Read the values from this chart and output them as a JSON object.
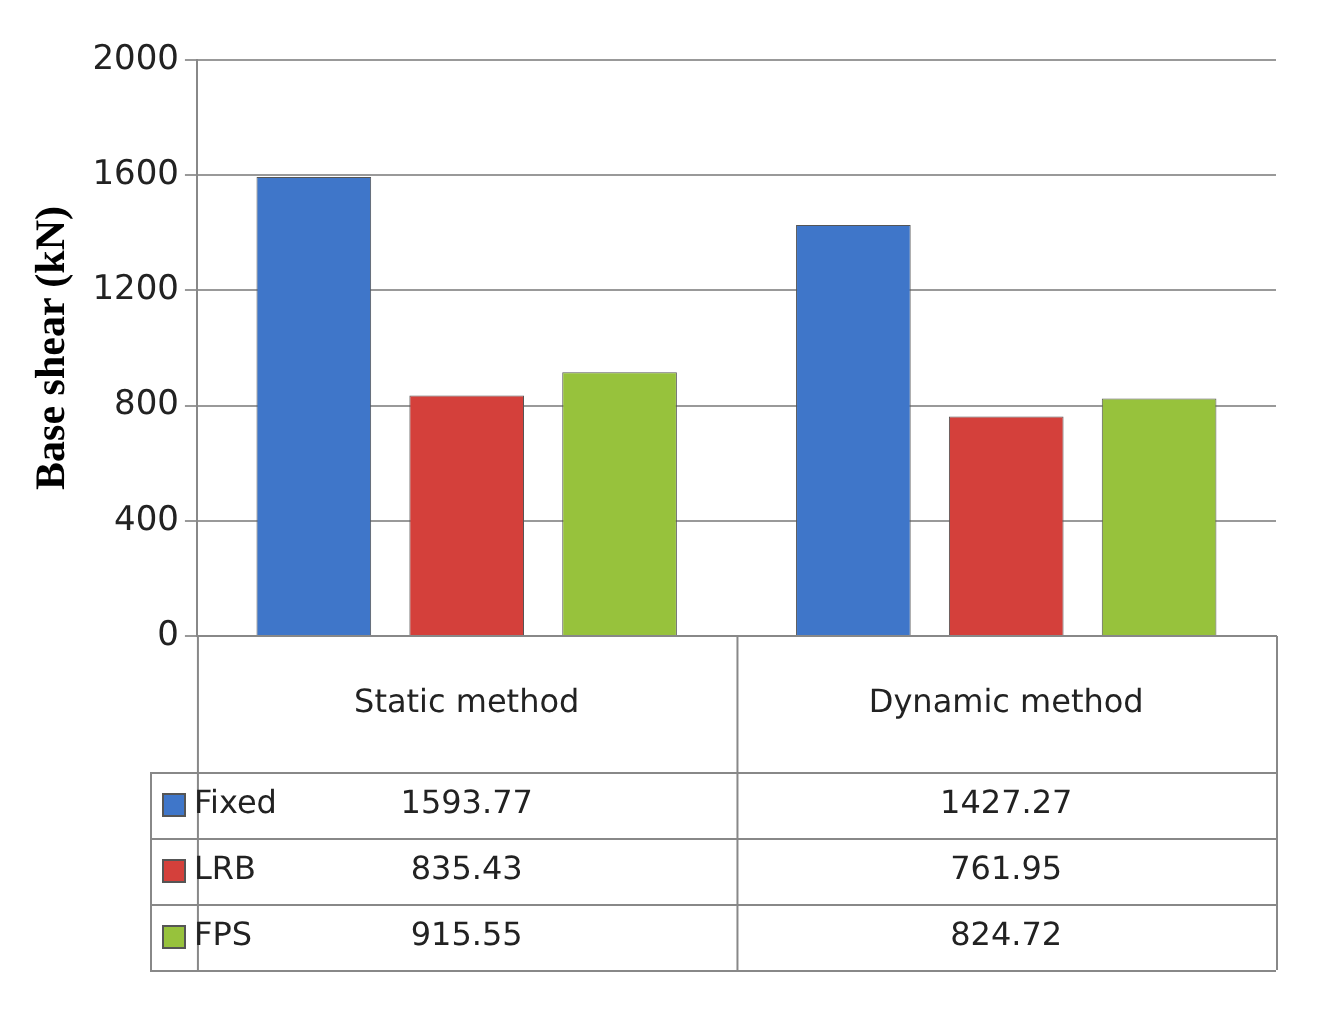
{
  "chart_data": {
    "type": "bar",
    "ylabel": "Base shear (kN)",
    "categories": [
      "Static method",
      "Dynamic method"
    ],
    "series": [
      {
        "name": "Fixed",
        "color": "#3f76c9",
        "values": [
          1593.77,
          1427.27
        ]
      },
      {
        "name": "LRB",
        "color": "#d4403b",
        "values": [
          835.43,
          761.95
        ]
      },
      {
        "name": "FPS",
        "color": "#97c23c",
        "values": [
          915.55,
          824.72
        ]
      }
    ],
    "ylim": [
      0,
      2000
    ],
    "yticks": [
      0,
      400,
      800,
      1200,
      1600,
      2000
    ],
    "grid": "y",
    "legend": "bottom",
    "data_labels": true
  }
}
